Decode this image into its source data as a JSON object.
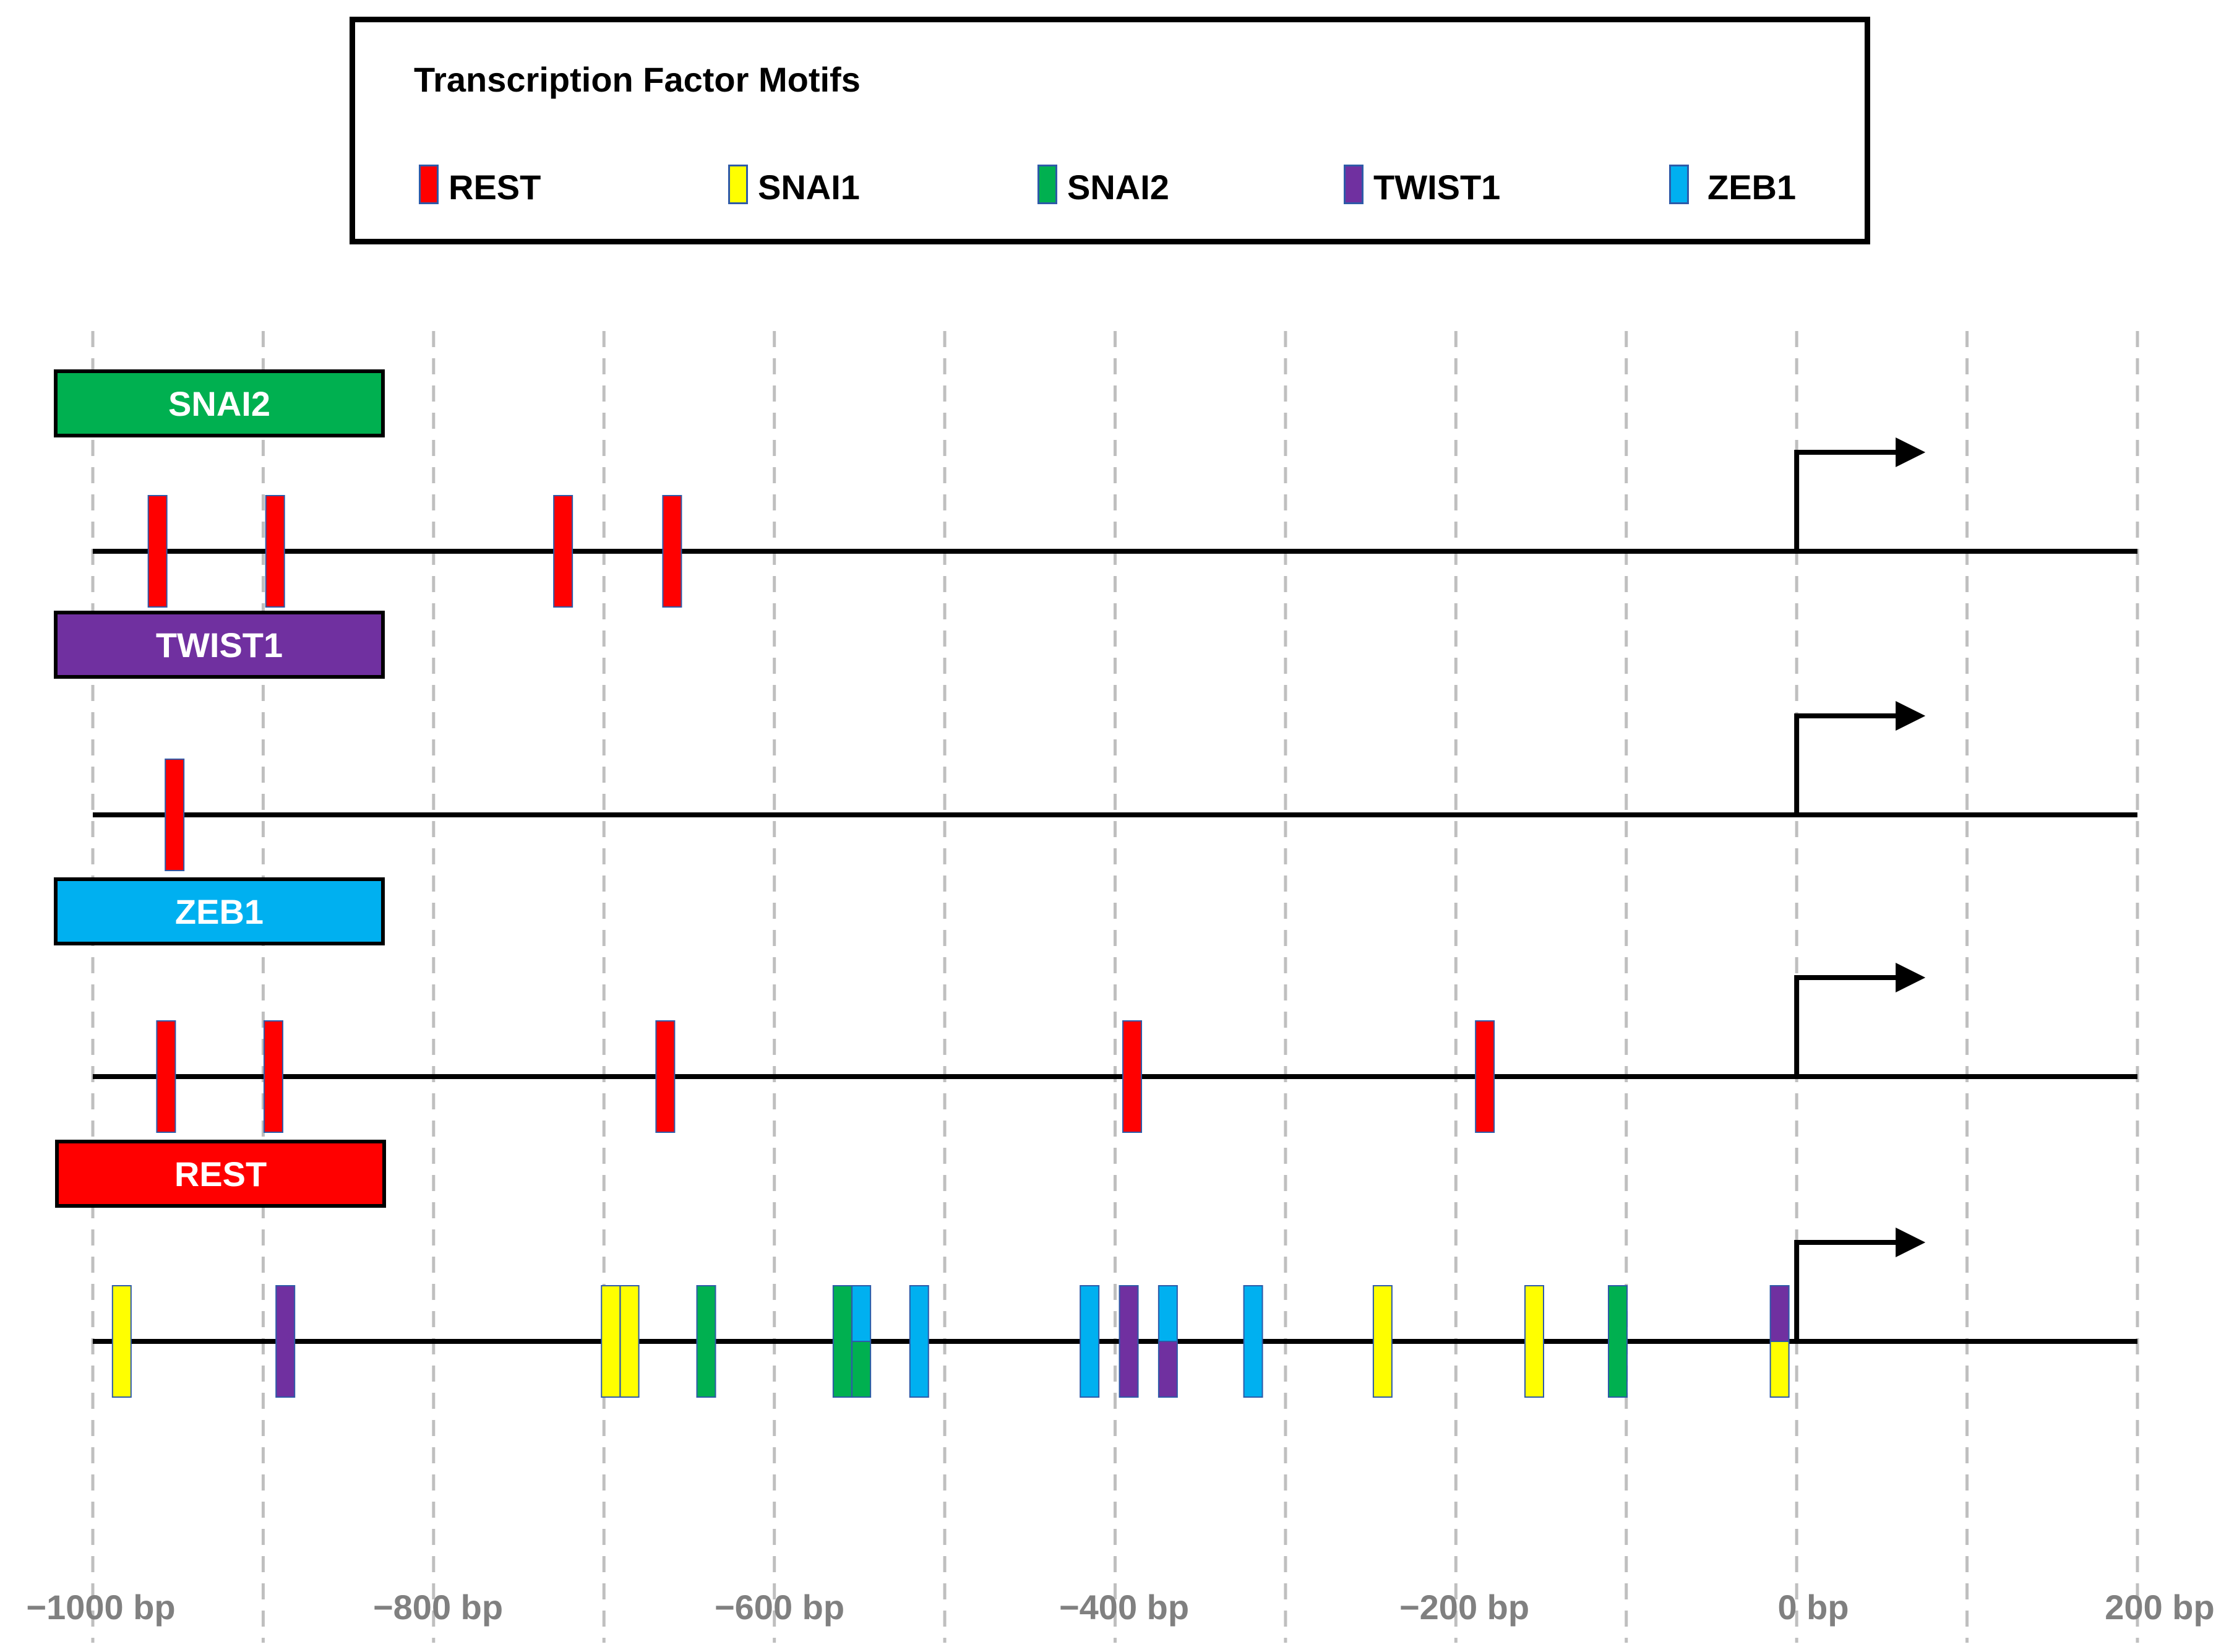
{
  "legend": {
    "title": "Transcription Factor Motifs",
    "items": [
      {
        "name": "REST",
        "color": "#ff0000"
      },
      {
        "name": "SNAI1",
        "color": "#ffff00"
      },
      {
        "name": "SNAI2",
        "color": "#00b050"
      },
      {
        "name": "TWIST1",
        "color": "#7030a0"
      },
      {
        "name": "ZEB1",
        "color": "#00b0f0"
      }
    ]
  },
  "axis": {
    "min_bp": -1000,
    "max_bp": 200,
    "ticks": [
      -1000,
      -900,
      -800,
      -700,
      -600,
      -500,
      -400,
      -300,
      -200,
      -100,
      0,
      100,
      200
    ],
    "tick_labels": [
      {
        "bp": -1000,
        "text": "−1000 bp"
      },
      {
        "bp": -800,
        "text": "−800 bp"
      },
      {
        "bp": -600,
        "text": "−600 bp"
      },
      {
        "bp": -400,
        "text": "−400 bp"
      },
      {
        "bp": -200,
        "text": "−200 bp"
      },
      {
        "bp": 0,
        "text": "0 bp"
      },
      {
        "bp": 200,
        "text": "200 bp"
      }
    ]
  },
  "tracks": [
    {
      "gene": "SNAI2",
      "label_color": "#00b050",
      "motifs": [
        {
          "tf": "REST",
          "pos": -962
        },
        {
          "tf": "REST",
          "pos": -893
        },
        {
          "tf": "REST",
          "pos": -724
        },
        {
          "tf": "REST",
          "pos": -660
        }
      ]
    },
    {
      "gene": "TWIST1",
      "label_color": "#7030a0",
      "motifs": [
        {
          "tf": "REST",
          "pos": -952
        }
      ]
    },
    {
      "gene": "ZEB1",
      "label_color": "#00b0f0",
      "motifs": [
        {
          "tf": "REST",
          "pos": -957
        },
        {
          "tf": "REST",
          "pos": -894
        },
        {
          "tf": "REST",
          "pos": -664
        },
        {
          "tf": "REST",
          "pos": -390
        },
        {
          "tf": "REST",
          "pos": -183
        }
      ]
    },
    {
      "gene": "REST",
      "label_color": "#ff0000",
      "motifs": [
        {
          "tf": "SNAI1",
          "pos": -983
        },
        {
          "tf": "TWIST1",
          "pos": -887
        },
        {
          "tf": "SNAI1",
          "pos": -696
        },
        {
          "tf": "SNAI1",
          "pos": -685
        },
        {
          "tf": "SNAI2",
          "pos": -640
        },
        {
          "tf": "SNAI2",
          "pos": -560
        },
        {
          "tf": [
            "ZEB1",
            "SNAI2"
          ],
          "pos": -549
        },
        {
          "tf": "ZEB1",
          "pos": -515
        },
        {
          "tf": "ZEB1",
          "pos": -415
        },
        {
          "tf": "TWIST1",
          "pos": -392
        },
        {
          "tf": [
            "ZEB1",
            "TWIST1"
          ],
          "pos": -369
        },
        {
          "tf": "ZEB1",
          "pos": -319
        },
        {
          "tf": "SNAI1",
          "pos": -243
        },
        {
          "tf": "SNAI1",
          "pos": -154
        },
        {
          "tf": "SNAI2",
          "pos": -105
        },
        {
          "tf": [
            "TWIST1",
            "SNAI1"
          ],
          "pos": -10
        }
      ]
    }
  ]
}
